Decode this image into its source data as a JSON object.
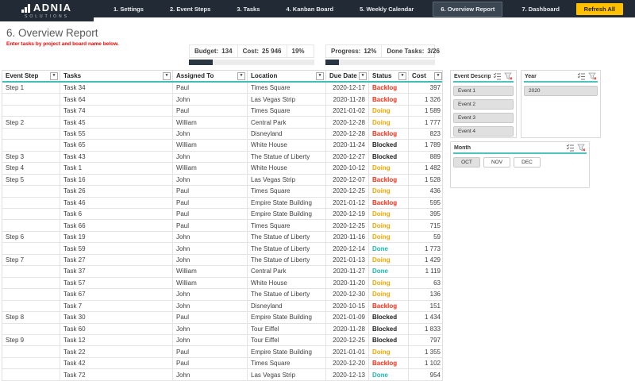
{
  "accent_teal": "#3fbfb8",
  "nav": {
    "logo_name": "ADNIA",
    "logo_sub": "SOLUTIONS",
    "tabs": [
      {
        "label": "1. Settings",
        "active": false
      },
      {
        "label": "2. Event Steps",
        "active": false
      },
      {
        "label": "3. Tasks",
        "active": false
      },
      {
        "label": "4. Kanban Board",
        "active": false
      },
      {
        "label": "5. Weekly Calendar",
        "active": false
      },
      {
        "label": "6. Overview Report",
        "active": true
      },
      {
        "label": "7. Dashboard",
        "active": false
      }
    ],
    "refresh_label": "Refresh All"
  },
  "header": {
    "title": "6. Overview Report",
    "note": "Enter tasks by project and board name below."
  },
  "kpis": {
    "budget_label": "Budget:",
    "budget_value": "134",
    "cost_label": "Cost:",
    "cost_value": "25 946",
    "cost_pct": "19%",
    "progress_label": "Progress:",
    "progress_value": "12%",
    "done_label": "Done Tasks:",
    "done_value": "3/26"
  },
  "status_colors": {
    "Backlog": "#ff2d16",
    "Doing": "#eda800",
    "Done": "#1eb8aa",
    "Blocked": "#212121"
  },
  "table": {
    "columns": [
      "Event Step",
      "Tasks",
      "Assigned To",
      "Location",
      "Due Date",
      "Status",
      "Cost"
    ],
    "rows": [
      {
        "step": "Step 1",
        "task": "Task 34",
        "assigned": "Paul",
        "location": "Times Square",
        "due": "2020-12-17",
        "status": "Backlog",
        "cost": "397"
      },
      {
        "step": "",
        "task": "Task 64",
        "assigned": "John",
        "location": "Las Vegas Strip",
        "due": "2020-11-28",
        "status": "Backlog",
        "cost": "1 326"
      },
      {
        "step": "",
        "task": "Task 74",
        "assigned": "Paul",
        "location": "Times Square",
        "due": "2021-01-02",
        "status": "Doing",
        "cost": "1 589"
      },
      {
        "step": "Step 2",
        "task": "Task 45",
        "assigned": "William",
        "location": "Central Park",
        "due": "2020-12-28",
        "status": "Doing",
        "cost": "1 777"
      },
      {
        "step": "",
        "task": "Task 55",
        "assigned": "John",
        "location": "Disneyland",
        "due": "2020-12-28",
        "status": "Backlog",
        "cost": "823"
      },
      {
        "step": "",
        "task": "Task 65",
        "assigned": "William",
        "location": "White House",
        "due": "2020-11-24",
        "status": "Blocked",
        "cost": "1 789"
      },
      {
        "step": "Step 3",
        "task": "Task 43",
        "assigned": "John",
        "location": "The Statue of Liberty",
        "due": "2020-12-27",
        "status": "Blocked",
        "cost": "889"
      },
      {
        "step": "Step 4",
        "task": "Task 1",
        "assigned": "William",
        "location": "White House",
        "due": "2020-10-12",
        "status": "Doing",
        "cost": "1 482"
      },
      {
        "step": "Step 5",
        "task": "Task 16",
        "assigned": "John",
        "location": "Las Vegas Strip",
        "due": "2020-12-07",
        "status": "Backlog",
        "cost": "1 528"
      },
      {
        "step": "",
        "task": "Task 26",
        "assigned": "Paul",
        "location": "Times Square",
        "due": "2020-12-25",
        "status": "Doing",
        "cost": "436"
      },
      {
        "step": "",
        "task": "Task 46",
        "assigned": "Paul",
        "location": "Empire State Building",
        "due": "2021-01-12",
        "status": "Backlog",
        "cost": "595"
      },
      {
        "step": "",
        "task": "Task 6",
        "assigned": "Paul",
        "location": "Empire State Building",
        "due": "2020-12-19",
        "status": "Doing",
        "cost": "395"
      },
      {
        "step": "",
        "task": "Task 66",
        "assigned": "Paul",
        "location": "Times Square",
        "due": "2020-12-25",
        "status": "Doing",
        "cost": "715"
      },
      {
        "step": "Step 6",
        "task": "Task 19",
        "assigned": "John",
        "location": "The Statue of Liberty",
        "due": "2020-11-16",
        "status": "Doing",
        "cost": "59"
      },
      {
        "step": "",
        "task": "Task 59",
        "assigned": "John",
        "location": "The Statue of Liberty",
        "due": "2020-12-14",
        "status": "Done",
        "cost": "1 773"
      },
      {
        "step": "Step 7",
        "task": "Task 27",
        "assigned": "John",
        "location": "The Statue of Liberty",
        "due": "2021-01-13",
        "status": "Doing",
        "cost": "1 429"
      },
      {
        "step": "",
        "task": "Task 37",
        "assigned": "William",
        "location": "Central Park",
        "due": "2020-11-27",
        "status": "Done",
        "cost": "1 119"
      },
      {
        "step": "",
        "task": "Task 57",
        "assigned": "William",
        "location": "White House",
        "due": "2020-11-20",
        "status": "Doing",
        "cost": "63"
      },
      {
        "step": "",
        "task": "Task 67",
        "assigned": "John",
        "location": "The Statue of Liberty",
        "due": "2020-12-30",
        "status": "Doing",
        "cost": "136"
      },
      {
        "step": "",
        "task": "Task 7",
        "assigned": "John",
        "location": "Disneyland",
        "due": "2020-10-15",
        "status": "Backlog",
        "cost": "151"
      },
      {
        "step": "Step 8",
        "task": "Task 30",
        "assigned": "Paul",
        "location": "Empire State Building",
        "due": "2021-01-09",
        "status": "Blocked",
        "cost": "1 434"
      },
      {
        "step": "",
        "task": "Task 60",
        "assigned": "John",
        "location": "Tour Eiffel",
        "due": "2020-11-28",
        "status": "Blocked",
        "cost": "1 833"
      },
      {
        "step": "Step 9",
        "task": "Task 12",
        "assigned": "John",
        "location": "Tour Eiffel",
        "due": "2020-12-25",
        "status": "Blocked",
        "cost": "797"
      },
      {
        "step": "",
        "task": "Task 22",
        "assigned": "Paul",
        "location": "Empire State Building",
        "due": "2021-01-01",
        "status": "Doing",
        "cost": "1 355"
      },
      {
        "step": "",
        "task": "Task 42",
        "assigned": "Paul",
        "location": "Times Square",
        "due": "2020-12-20",
        "status": "Backlog",
        "cost": "1 102"
      },
      {
        "step": "",
        "task": "Task 72",
        "assigned": "John",
        "location": "Las Vegas Strip",
        "due": "2020-12-13",
        "status": "Done",
        "cost": "954"
      }
    ]
  },
  "slicers": {
    "event": {
      "title": "Event Descripti...",
      "items": [
        "Event 1",
        "Event 2",
        "Event 3",
        "Event 4"
      ],
      "selected": [
        "Event 1",
        "Event 2",
        "Event 3",
        "Event 4"
      ]
    },
    "year": {
      "title": "Year",
      "items": [
        "2020"
      ],
      "selected": [
        "2020"
      ]
    },
    "month": {
      "title": "Month",
      "items": [
        "OCT",
        "NOV",
        "DEC"
      ],
      "selected": [
        "OCT"
      ]
    }
  }
}
